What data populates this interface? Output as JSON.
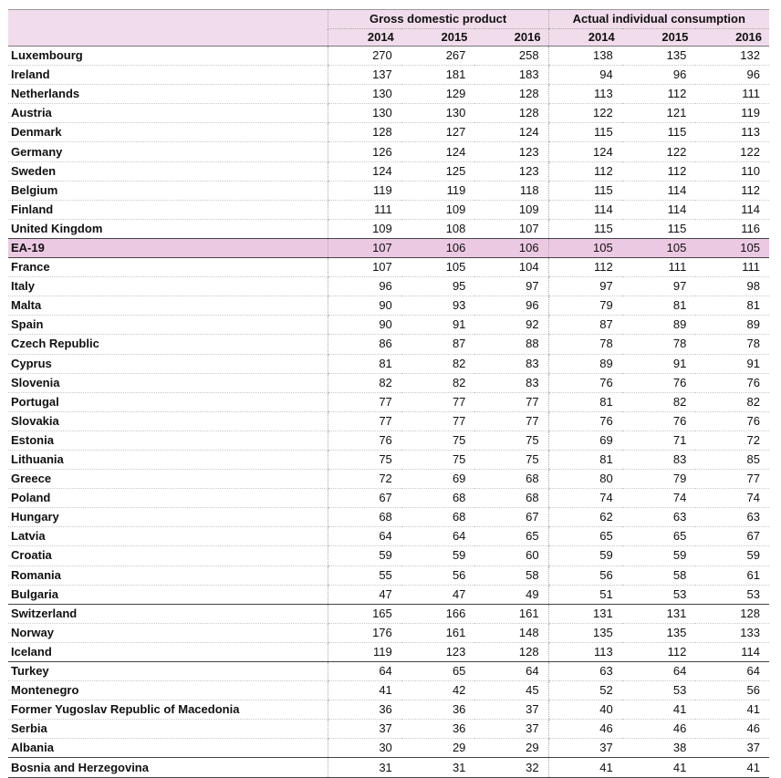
{
  "header": {
    "group_gdp": "Gross domestic product",
    "group_aic": "Actual individual consumption",
    "years": [
      "2014",
      "2015",
      "2016",
      "2014",
      "2015",
      "2016"
    ]
  },
  "rows": [
    {
      "name": "Luxembourg",
      "v": [
        "270",
        "267",
        "258",
        "138",
        "135",
        "132"
      ]
    },
    {
      "name": "Ireland",
      "v": [
        "137",
        "181",
        "183",
        "94",
        "96",
        "96"
      ]
    },
    {
      "name": "Netherlands",
      "v": [
        "130",
        "129",
        "128",
        "113",
        "112",
        "111"
      ]
    },
    {
      "name": "Austria",
      "v": [
        "130",
        "130",
        "128",
        "122",
        "121",
        "119"
      ]
    },
    {
      "name": "Denmark",
      "v": [
        "128",
        "127",
        "124",
        "115",
        "115",
        "113"
      ]
    },
    {
      "name": "Germany",
      "v": [
        "126",
        "124",
        "123",
        "124",
        "122",
        "122"
      ]
    },
    {
      "name": "Sweden",
      "v": [
        "124",
        "125",
        "123",
        "112",
        "112",
        "110"
      ]
    },
    {
      "name": "Belgium",
      "v": [
        "119",
        "119",
        "118",
        "115",
        "114",
        "112"
      ]
    },
    {
      "name": "Finland",
      "v": [
        "111",
        "109",
        "109",
        "114",
        "114",
        "114"
      ]
    },
    {
      "name": "United Kingdom",
      "v": [
        "109",
        "108",
        "107",
        "115",
        "115",
        "116"
      ]
    },
    {
      "name": "EA-19",
      "v": [
        "107",
        "106",
        "106",
        "105",
        "105",
        "105"
      ],
      "highlight": true
    },
    {
      "name": "France",
      "v": [
        "107",
        "105",
        "104",
        "112",
        "111",
        "111"
      ]
    },
    {
      "name": "Italy",
      "v": [
        "96",
        "95",
        "97",
        "97",
        "97",
        "98"
      ]
    },
    {
      "name": "Malta",
      "v": [
        "90",
        "93",
        "96",
        "79",
        "81",
        "81"
      ]
    },
    {
      "name": "Spain",
      "v": [
        "90",
        "91",
        "92",
        "87",
        "89",
        "89"
      ]
    },
    {
      "name": "Czech Republic",
      "v": [
        "86",
        "87",
        "88",
        "78",
        "78",
        "78"
      ]
    },
    {
      "name": "Cyprus",
      "v": [
        "81",
        "82",
        "83",
        "89",
        "91",
        "91"
      ]
    },
    {
      "name": "Slovenia",
      "v": [
        "82",
        "82",
        "83",
        "76",
        "76",
        "76"
      ]
    },
    {
      "name": "Portugal",
      "v": [
        "77",
        "77",
        "77",
        "81",
        "82",
        "82"
      ]
    },
    {
      "name": "Slovakia",
      "v": [
        "77",
        "77",
        "77",
        "76",
        "76",
        "76"
      ]
    },
    {
      "name": "Estonia",
      "v": [
        "76",
        "75",
        "75",
        "69",
        "71",
        "72"
      ]
    },
    {
      "name": "Lithuania",
      "v": [
        "75",
        "75",
        "75",
        "81",
        "83",
        "85"
      ]
    },
    {
      "name": "Greece",
      "v": [
        "72",
        "69",
        "68",
        "80",
        "79",
        "77"
      ]
    },
    {
      "name": "Poland",
      "v": [
        "67",
        "68",
        "68",
        "74",
        "74",
        "74"
      ]
    },
    {
      "name": "Hungary",
      "v": [
        "68",
        "68",
        "67",
        "62",
        "63",
        "63"
      ]
    },
    {
      "name": "Latvia",
      "v": [
        "64",
        "64",
        "65",
        "65",
        "65",
        "67"
      ]
    },
    {
      "name": "Croatia",
      "v": [
        "59",
        "59",
        "60",
        "59",
        "59",
        "59"
      ]
    },
    {
      "name": "Romania",
      "v": [
        "55",
        "56",
        "58",
        "56",
        "58",
        "61"
      ]
    },
    {
      "name": "Bulgaria",
      "v": [
        "47",
        "47",
        "49",
        "51",
        "53",
        "53"
      ]
    },
    {
      "name": "Switzerland",
      "v": [
        "165",
        "166",
        "161",
        "131",
        "131",
        "128"
      ],
      "sep": true
    },
    {
      "name": "Norway",
      "v": [
        "176",
        "161",
        "148",
        "135",
        "135",
        "133"
      ]
    },
    {
      "name": "Iceland",
      "v": [
        "119",
        "123",
        "128",
        "113",
        "112",
        "114"
      ]
    },
    {
      "name": "Turkey",
      "v": [
        "64",
        "65",
        "64",
        "63",
        "64",
        "64"
      ],
      "sep": true
    },
    {
      "name": "Montenegro",
      "v": [
        "41",
        "42",
        "45",
        "52",
        "53",
        "56"
      ]
    },
    {
      "name": "Former Yugoslav Republic of Macedonia",
      "v": [
        "36",
        "36",
        "37",
        "40",
        "41",
        "41"
      ]
    },
    {
      "name": "Serbia",
      "v": [
        "37",
        "36",
        "37",
        "46",
        "46",
        "46"
      ]
    },
    {
      "name": "Albania",
      "v": [
        "30",
        "29",
        "29",
        "37",
        "38",
        "37"
      ]
    },
    {
      "name": "Bosnia and Herzegovina",
      "v": [
        "31",
        "31",
        "32",
        "41",
        "41",
        "41"
      ],
      "sep": true,
      "last": true
    }
  ]
}
